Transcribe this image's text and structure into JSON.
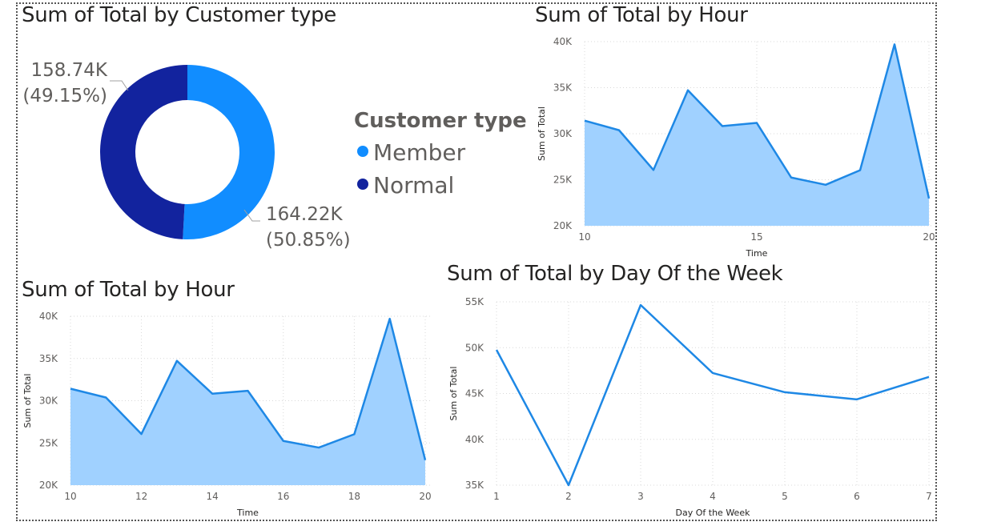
{
  "colors": {
    "member": "#118dff",
    "normal": "#12239e",
    "line": "#1e88e5",
    "area": "#a0d1ff",
    "axis_text": "#605e5c",
    "grid": "#d9d9d9"
  },
  "donut": {
    "title": "Sum of Total by Customer type",
    "legend_title": "Customer type",
    "labels": {
      "normal_value": "158.74K",
      "normal_pct": "(49.15%)",
      "member_value": "164.22K",
      "member_pct": "(50.85%)"
    },
    "legend": [
      {
        "name": "Member",
        "color": "#118dff"
      },
      {
        "name": "Normal",
        "color": "#12239e"
      }
    ]
  },
  "chart_data": [
    {
      "type": "pie",
      "title": "Sum of Total by Customer type",
      "legend_title": "Customer type",
      "categories": [
        "Member",
        "Normal"
      ],
      "values": [
        164220,
        158740
      ],
      "percentages": [
        50.85,
        49.15
      ],
      "donut": true
    },
    {
      "type": "area",
      "title": "Sum of Total by Hour",
      "xlabel": "Time",
      "ylabel": "Sum of Total",
      "x": [
        10,
        11,
        12,
        13,
        14,
        15,
        16,
        17,
        18,
        19,
        20
      ],
      "y": [
        31420,
        30380,
        26060,
        34720,
        30830,
        31170,
        25240,
        24450,
        26030,
        39700,
        22970
      ],
      "ylim": [
        20000,
        40000
      ],
      "yticks": [
        20000,
        25000,
        30000,
        35000,
        40000
      ],
      "ytick_labels": [
        "20K",
        "25K",
        "30K",
        "35K",
        "40K"
      ],
      "xticks": [
        10,
        15,
        20
      ],
      "grid": true
    },
    {
      "type": "area",
      "title": "Sum of Total by Hour",
      "xlabel": "Time",
      "ylabel": "Sum of Total",
      "x": [
        10,
        11,
        12,
        13,
        14,
        15,
        16,
        17,
        18,
        19,
        20
      ],
      "y": [
        31420,
        30380,
        26060,
        34720,
        30830,
        31170,
        25240,
        24450,
        26030,
        39700,
        22970
      ],
      "ylim": [
        20000,
        40000
      ],
      "yticks": [
        20000,
        25000,
        30000,
        35000,
        40000
      ],
      "ytick_labels": [
        "20K",
        "25K",
        "30K",
        "35K",
        "40K"
      ],
      "xticks": [
        10,
        12,
        14,
        16,
        18,
        20
      ],
      "grid": true
    },
    {
      "type": "line",
      "title": "Sum of Total by Day Of the Week",
      "xlabel": "Day Of the Week",
      "ylabel": "Sum of Total",
      "x": [
        1,
        2,
        3,
        4,
        5,
        6,
        7
      ],
      "y": [
        49760,
        35000,
        54650,
        47230,
        45140,
        44360,
        46810
      ],
      "ylim": [
        35000,
        55000
      ],
      "yticks": [
        35000,
        40000,
        45000,
        50000,
        55000
      ],
      "ytick_labels": [
        "35K",
        "40K",
        "45K",
        "50K",
        "55K"
      ],
      "xticks": [
        1,
        2,
        3,
        4,
        5,
        6,
        7
      ],
      "grid": true
    }
  ]
}
